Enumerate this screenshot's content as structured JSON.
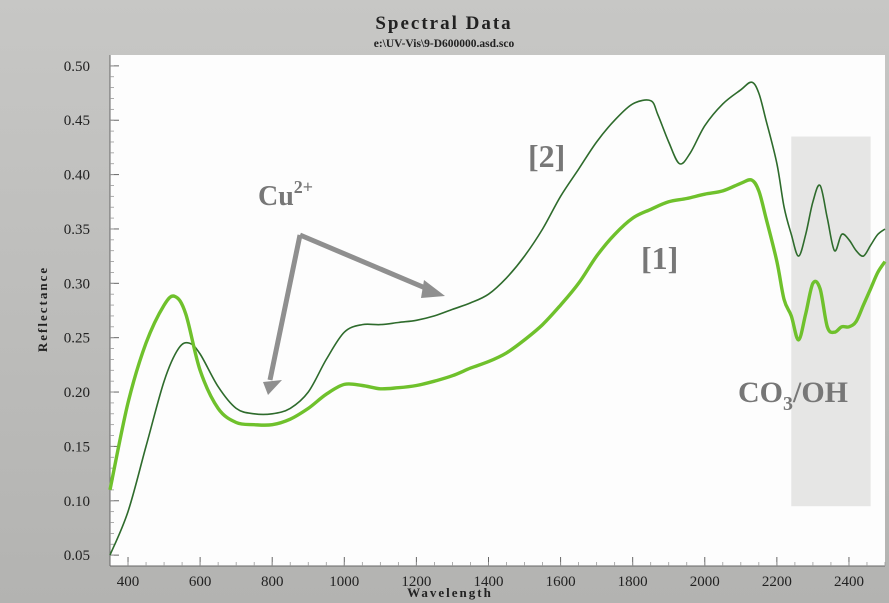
{
  "chart_data": {
    "type": "line",
    "title": "Spectral Data",
    "subtitle": "e:\\UV-Vis\\9-D600000.asd.sco",
    "xlabel": "Wavelength",
    "ylabel": "Reflectance",
    "xlim": [
      350,
      2500
    ],
    "ylim": [
      0.04,
      0.51
    ],
    "x_ticks": [
      400,
      600,
      800,
      1000,
      1200,
      1400,
      1600,
      1800,
      2000,
      2200,
      2400
    ],
    "y_ticks": [
      0.05,
      0.1,
      0.15,
      0.2,
      0.25,
      0.3,
      0.35,
      0.4,
      0.45,
      0.5
    ],
    "y_tick_labels": [
      "0.05",
      "0.10",
      "0.15",
      "0.20",
      "0.25",
      "0.30",
      "0.35",
      "0.40",
      "0.45",
      "0.50"
    ],
    "grid": false,
    "series": [
      {
        "name": "[2]",
        "color": "#2e6b2c",
        "x": [
          350,
          400,
          450,
          500,
          540,
          570,
          600,
          650,
          700,
          750,
          800,
          850,
          900,
          950,
          1000,
          1050,
          1100,
          1150,
          1200,
          1250,
          1300,
          1350,
          1400,
          1450,
          1500,
          1550,
          1600,
          1650,
          1700,
          1750,
          1800,
          1850,
          1870,
          1900,
          1930,
          1960,
          2000,
          2050,
          2100,
          2130,
          2150,
          2170,
          2200,
          2220,
          2240,
          2260,
          2280,
          2300,
          2320,
          2340,
          2360,
          2380,
          2400,
          2420,
          2440,
          2460,
          2480,
          2500
        ],
        "values": [
          0.05,
          0.09,
          0.15,
          0.21,
          0.24,
          0.245,
          0.235,
          0.205,
          0.185,
          0.18,
          0.18,
          0.185,
          0.2,
          0.23,
          0.255,
          0.262,
          0.262,
          0.264,
          0.266,
          0.27,
          0.276,
          0.282,
          0.29,
          0.305,
          0.325,
          0.35,
          0.38,
          0.405,
          0.43,
          0.45,
          0.465,
          0.468,
          0.455,
          0.43,
          0.41,
          0.42,
          0.445,
          0.465,
          0.478,
          0.485,
          0.475,
          0.45,
          0.41,
          0.37,
          0.345,
          0.325,
          0.345,
          0.375,
          0.39,
          0.36,
          0.33,
          0.345,
          0.34,
          0.33,
          0.325,
          0.335,
          0.345,
          0.35
        ]
      },
      {
        "name": "[1]",
        "color": "#6fc12c",
        "x": [
          350,
          400,
          450,
          500,
          530,
          560,
          600,
          650,
          700,
          750,
          800,
          850,
          900,
          950,
          1000,
          1050,
          1100,
          1150,
          1200,
          1250,
          1300,
          1350,
          1400,
          1450,
          1500,
          1550,
          1600,
          1650,
          1700,
          1750,
          1800,
          1850,
          1900,
          1950,
          2000,
          2050,
          2100,
          2130,
          2150,
          2170,
          2200,
          2220,
          2240,
          2260,
          2280,
          2300,
          2320,
          2340,
          2360,
          2380,
          2400,
          2420,
          2440,
          2460,
          2480,
          2500
        ],
        "values": [
          0.11,
          0.19,
          0.245,
          0.28,
          0.288,
          0.272,
          0.22,
          0.185,
          0.172,
          0.17,
          0.17,
          0.175,
          0.185,
          0.198,
          0.207,
          0.206,
          0.203,
          0.204,
          0.206,
          0.21,
          0.215,
          0.222,
          0.228,
          0.236,
          0.248,
          0.262,
          0.28,
          0.3,
          0.325,
          0.345,
          0.36,
          0.368,
          0.375,
          0.378,
          0.382,
          0.385,
          0.392,
          0.395,
          0.385,
          0.36,
          0.32,
          0.285,
          0.27,
          0.248,
          0.272,
          0.3,
          0.295,
          0.26,
          0.255,
          0.26,
          0.26,
          0.265,
          0.28,
          0.295,
          0.31,
          0.32
        ]
      }
    ],
    "annotations": {
      "cu_label_base": "Cu",
      "cu_label_sup": "2+",
      "label_2": "[2]",
      "label_1": "[1]",
      "co3_prefix": "CO",
      "co3_sub": "3",
      "co3_suffix": "/OH"
    },
    "highlight_region": {
      "x": [
        2240,
        2460
      ],
      "y": [
        0.095,
        0.435
      ]
    }
  }
}
